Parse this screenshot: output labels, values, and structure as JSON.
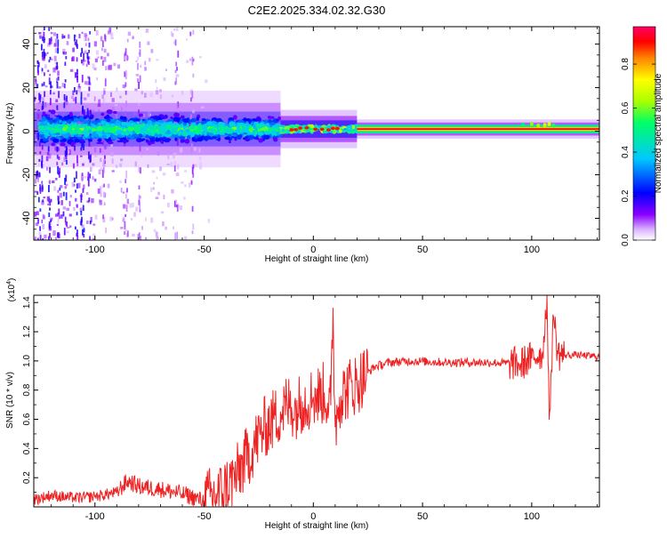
{
  "title": "C2E2.2025.334.02.32.G30",
  "chart_data": [
    {
      "type": "heatmap",
      "title": "C2E2.2025.334.02.32.G30",
      "xlabel": "Height of straight line (km)",
      "ylabel": "Frequency (Hz)",
      "xlim": [
        -128,
        131
      ],
      "ylim": [
        -50,
        48
      ],
      "xticks": [
        -100,
        -50,
        0,
        50,
        100
      ],
      "yticks": [
        -40,
        -20,
        0,
        20,
        40
      ],
      "colorbar": {
        "label": "Normalized spectral amplitude",
        "range": [
          0,
          0.97
        ],
        "ticks": [
          0.0,
          0.2,
          0.4,
          0.6,
          0.8
        ],
        "colormap": [
          "#ffffff",
          "#d9b3ff",
          "#7a00ff",
          "#0000ff",
          "#00c8ff",
          "#00ff66",
          "#aaff00",
          "#ffff00",
          "#ff8800",
          "#ff0000",
          "#ff0066"
        ]
      },
      "band": {
        "center_freq_hz": 1,
        "segments": [
          {
            "x_from": -128,
            "x_to": -15,
            "half_width_hz": 8,
            "peak_amplitude": 0.45
          },
          {
            "x_from": -15,
            "x_to": 20,
            "half_width_hz": 4,
            "peak_amplitude": 0.85
          },
          {
            "x_from": 20,
            "x_to": 131,
            "half_width_hz": 2,
            "peak_amplitude": 0.95
          }
        ]
      }
    },
    {
      "type": "line",
      "xlabel": "Height of straight line (km)",
      "ylabel": "SNR (10 * v/v)",
      "y_multiplier": "(x10^4)",
      "y_multiplier_base": "(x10",
      "y_multiplier_exp": "4",
      "y_multiplier_close": ")",
      "xlim": [
        -128,
        131
      ],
      "ylim": [
        0,
        1.45
      ],
      "xticks": [
        -100,
        -50,
        0,
        50,
        100
      ],
      "yticks": [
        0.2,
        0.4,
        0.6,
        0.8,
        1.0,
        1.2,
        1.4
      ],
      "color": "#ee2222",
      "series": [
        {
          "x": [
            -128,
            -120,
            -110,
            -100,
            -90,
            -85,
            -80,
            -70,
            -60,
            -50,
            -42,
            -35,
            -28,
            -22,
            -18,
            -15,
            -12,
            -8,
            -5,
            0,
            5,
            8,
            9,
            10,
            12,
            15,
            20,
            25,
            28,
            35,
            45,
            60,
            80,
            95,
            100,
            105,
            107,
            108,
            110,
            112,
            115,
            120,
            131
          ],
          "y": [
            0.05,
            0.08,
            0.06,
            0.07,
            0.1,
            0.18,
            0.14,
            0.12,
            0.09,
            0.04,
            0.1,
            0.22,
            0.4,
            0.55,
            0.6,
            0.65,
            0.7,
            0.68,
            0.72,
            0.75,
            0.78,
            0.7,
            1.36,
            0.55,
            0.75,
            0.8,
            0.85,
            0.92,
            0.96,
            0.99,
            1.0,
            0.99,
            0.99,
            0.98,
            1.02,
            1.06,
            1.45,
            0.6,
            1.3,
            1.05,
            1.04,
            1.04,
            1.03
          ]
        }
      ]
    }
  ]
}
